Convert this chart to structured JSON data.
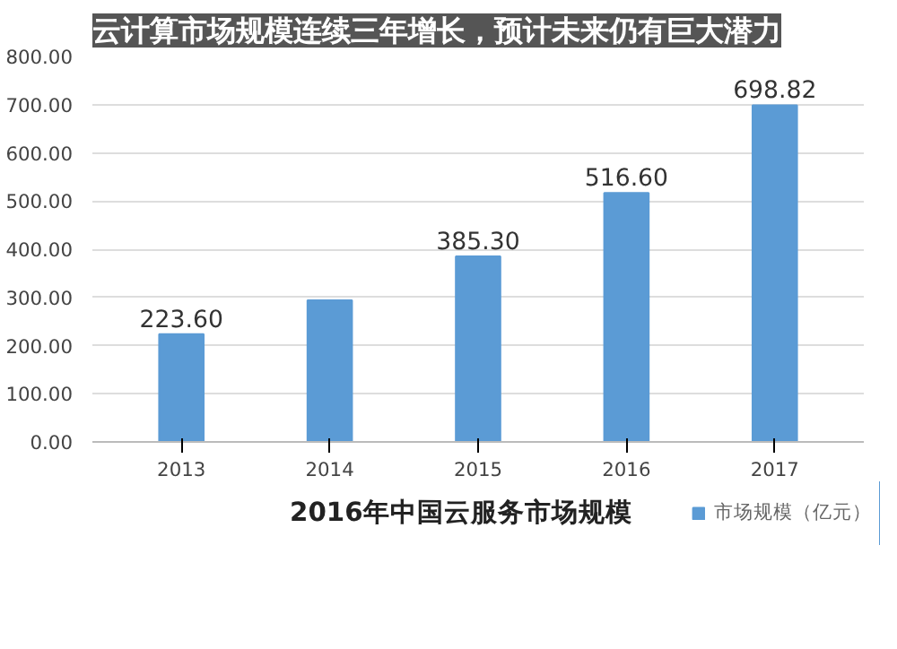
{
  "chart_data": {
    "type": "bar",
    "title": "2016年中国云服务市场规模",
    "subtitle": "云计算市场规模连续三年增长，预计未来仍有巨大潜力",
    "categories": [
      "2013",
      "2014",
      "2015",
      "2016",
      "2017"
    ],
    "series": [
      {
        "name": "市场规模（亿元）",
        "color": "#5b9bd5",
        "values": [
          223.6,
          294,
          385.3,
          516.6,
          698.82
        ],
        "value_labels": [
          "223.60",
          null,
          "385.30",
          "516.60",
          "698.82"
        ]
      }
    ],
    "ylim": [
      0,
      800
    ],
    "yticks": [
      {
        "value": 0,
        "label": "0.00"
      },
      {
        "value": 100,
        "label": "100.00"
      },
      {
        "value": 200,
        "label": "200.00"
      },
      {
        "value": 300,
        "label": "300.00"
      },
      {
        "value": 400,
        "label": "400.00"
      },
      {
        "value": 500,
        "label": "500.00"
      },
      {
        "value": 600,
        "label": "600.00"
      },
      {
        "value": 700,
        "label": "700.00"
      },
      {
        "value": 800,
        "label": "800.00"
      }
    ],
    "grid": "y",
    "legend": "bottom right"
  }
}
